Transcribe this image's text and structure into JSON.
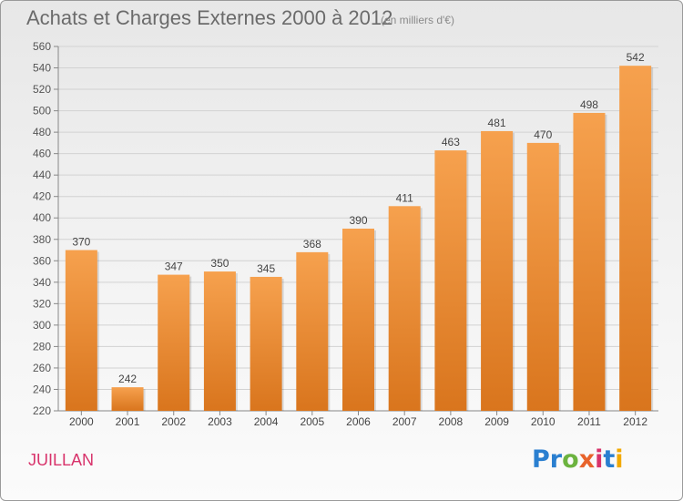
{
  "title": "Achats et Charges Externes 2000 à 2012",
  "subtitle": "(en milliers d'€)",
  "commune": "JUILLAN",
  "brand": {
    "letters": [
      "P",
      "r",
      "o",
      "x",
      "i",
      "t",
      "i"
    ],
    "colors": [
      "#2a7fd0",
      "#2a7fd0",
      "#6cb33f",
      "#e8632b",
      "#d8336b",
      "#2a7fd0",
      "#f2a900"
    ]
  },
  "colors": {
    "bar_top": "#f6a14e",
    "bar_bottom": "#d9751d",
    "title": "#6b6b6b",
    "commune": "#d8336b"
  },
  "chart_data": {
    "type": "bar",
    "title": "Achats et Charges Externes 2000 à 2012",
    "subtitle": "(en milliers d'€)",
    "categories": [
      "2000",
      "2001",
      "2002",
      "2003",
      "2004",
      "2005",
      "2006",
      "2007",
      "2008",
      "2009",
      "2010",
      "2011",
      "2012"
    ],
    "values": [
      370,
      242,
      347,
      350,
      345,
      368,
      390,
      411,
      463,
      481,
      470,
      498,
      542
    ],
    "ylim": [
      220,
      560
    ],
    "yticks": [
      220,
      240,
      260,
      280,
      300,
      320,
      340,
      360,
      380,
      400,
      420,
      440,
      460,
      480,
      500,
      520,
      540,
      560
    ],
    "grid": true,
    "xlabel": "",
    "ylabel": ""
  }
}
